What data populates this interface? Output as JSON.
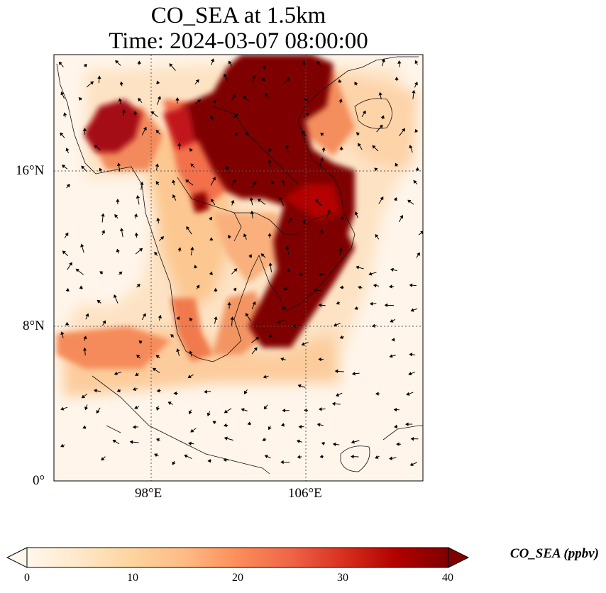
{
  "title": {
    "line1": "CO_SEA at 1.5km",
    "line2": "Time: 2024-03-07 08:00:00"
  },
  "map": {
    "lon_range": [
      93,
      112
    ],
    "lat_range": [
      0,
      22
    ],
    "gridlines": "dotted",
    "lat_ticks": [
      "16°N",
      "8°N",
      "0°"
    ],
    "lon_ticks": [
      "98°E",
      "106°E"
    ],
    "field": "CO_SEA",
    "colormap": "OrRd",
    "overlay": "wind vectors"
  },
  "colorbar": {
    "label": "CO_SEA (ppbv)",
    "ticks": [
      "0",
      "10",
      "20",
      "30",
      "40"
    ],
    "range": [
      0,
      40
    ],
    "extend": "both",
    "colors": [
      "#fff7ec",
      "#fee8c8",
      "#fdd49e",
      "#fdbb84",
      "#fc8d59",
      "#ef6548",
      "#d7301f",
      "#b30000",
      "#7f0000"
    ]
  }
}
